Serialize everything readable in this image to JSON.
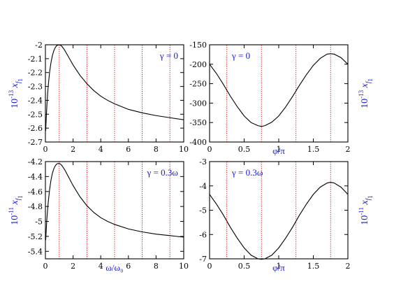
{
  "chart_data": [
    {
      "type": "line",
      "id": "top-left",
      "title": "",
      "xlabel": "ω/ω₀",
      "ylabel_mantissa": "10",
      "ylabel_exp": "-13",
      "ylabel_var": "x",
      "ylabel_sub": "f",
      "ylabel_subsub": "1",
      "ylabel_side": "left",
      "annotation": "γ = 0",
      "xlim": [
        0,
        10
      ],
      "ylim": [
        -2.7,
        -2.0
      ],
      "xticks": [
        0,
        2,
        4,
        6,
        8,
        10
      ],
      "xtick_labels": [
        "0",
        "2",
        "4",
        "6",
        "8",
        "10"
      ],
      "yticks": [
        -2.7,
        -2.6,
        -2.5,
        -2.4,
        -2.3,
        -2.2,
        -2.1,
        -2.0
      ],
      "ytick_labels": [
        "-2.7",
        "-2.6",
        "-2.5",
        "-2.4",
        "-2.3",
        "-2.2",
        "-2.1",
        "-2"
      ],
      "yticks_side": "left",
      "show_xlabel": false,
      "vlines": [
        1,
        3,
        5,
        7,
        9
      ],
      "x": [
        0.02,
        0.05,
        0.1,
        0.15,
        0.2,
        0.3,
        0.4,
        0.5,
        0.6,
        0.7,
        0.8,
        0.9,
        1.0,
        1.1,
        1.2,
        1.4,
        1.6,
        1.8,
        2.0,
        2.5,
        3.0,
        3.5,
        4.0,
        4.5,
        5.0,
        6.0,
        7.0,
        8.0,
        9.0,
        10.0
      ],
      "y": [
        -2.62,
        -2.55,
        -2.45,
        -2.37,
        -2.3,
        -2.2,
        -2.13,
        -2.08,
        -2.045,
        -2.022,
        -2.008,
        -2.002,
        -2.0,
        -2.004,
        -2.012,
        -2.04,
        -2.075,
        -2.11,
        -2.145,
        -2.22,
        -2.28,
        -2.33,
        -2.37,
        -2.4,
        -2.425,
        -2.465,
        -2.49,
        -2.51,
        -2.525,
        -2.54
      ],
      "colors": {
        "line": "#000000",
        "vline": "#d01010"
      }
    },
    {
      "type": "line",
      "id": "top-right",
      "title": "",
      "xlabel": "φ/π",
      "ylabel_mantissa": "10",
      "ylabel_exp": "-13",
      "ylabel_var": "x",
      "ylabel_sub": "f",
      "ylabel_subsub": "1",
      "ylabel_side": "right",
      "annotation": "γ = 0",
      "xlim": [
        0,
        2
      ],
      "ylim": [
        -400,
        -150
      ],
      "xticks": [
        0,
        0.5,
        1,
        1.5,
        2
      ],
      "xtick_labels": [
        "0",
        "0.5",
        "1",
        "1.5",
        "2"
      ],
      "yticks": [
        -400,
        -350,
        -300,
        -250,
        -200,
        -150
      ],
      "ytick_labels": [
        "-400",
        "-350",
        "-300",
        "-250",
        "-200",
        "-150"
      ],
      "yticks_side": "left",
      "show_xlabel": true,
      "vlines": [
        0.25,
        0.75,
        1.25,
        1.75
      ],
      "x": [
        0,
        0.1,
        0.2,
        0.3,
        0.4,
        0.5,
        0.6,
        0.7,
        0.75,
        0.8,
        0.9,
        1.0,
        1.1,
        1.2,
        1.3,
        1.4,
        1.5,
        1.6,
        1.7,
        1.75,
        1.8,
        1.9,
        2.0
      ],
      "y": [
        -200,
        -224,
        -252,
        -282,
        -309,
        -333,
        -350,
        -358,
        -360,
        -358,
        -349,
        -333,
        -310,
        -283,
        -254,
        -227,
        -203,
        -185,
        -174,
        -173,
        -174,
        -183,
        -200
      ],
      "colors": {
        "line": "#000000",
        "vline": "#d01010"
      }
    },
    {
      "type": "line",
      "id": "bottom-left",
      "title": "",
      "xlabel": "ω/ω₀",
      "ylabel_mantissa": "10",
      "ylabel_exp": "-11",
      "ylabel_var": "x",
      "ylabel_sub": "f",
      "ylabel_subsub": "1",
      "ylabel_side": "left",
      "annotation": "γ = 0.3ω",
      "xlim": [
        0,
        10
      ],
      "ylim": [
        -5.5,
        -4.2
      ],
      "xticks": [
        0,
        2,
        4,
        6,
        8,
        10
      ],
      "xtick_labels": [
        "0",
        "2",
        "4",
        "6",
        "8",
        "10"
      ],
      "yticks": [
        -5.4,
        -5.2,
        -5.0,
        -4.8,
        -4.6,
        -4.4,
        -4.2
      ],
      "ytick_labels": [
        "-5.4",
        "-5.2",
        "-5",
        "-4.8",
        "-4.6",
        "-4.4",
        "-4.2"
      ],
      "yticks_side": "left",
      "show_xlabel": true,
      "vlines": [
        1,
        3,
        5,
        7,
        9
      ],
      "x": [
        0.02,
        0.1,
        0.2,
        0.3,
        0.4,
        0.5,
        0.6,
        0.7,
        0.8,
        0.9,
        1.0,
        1.1,
        1.2,
        1.4,
        1.6,
        1.8,
        2.0,
        2.5,
        3.0,
        3.5,
        4.0,
        4.5,
        5.0,
        6.0,
        7.0,
        8.0,
        9.0,
        10.0
      ],
      "y": [
        -5.25,
        -4.98,
        -4.75,
        -4.58,
        -4.45,
        -4.36,
        -4.3,
        -4.26,
        -4.235,
        -4.225,
        -4.225,
        -4.235,
        -4.255,
        -4.31,
        -4.38,
        -4.45,
        -4.52,
        -4.67,
        -4.79,
        -4.88,
        -4.95,
        -5.0,
        -5.04,
        -5.1,
        -5.14,
        -5.17,
        -5.19,
        -5.21
      ],
      "colors": {
        "line": "#000000",
        "vline": "#d01010"
      }
    },
    {
      "type": "line",
      "id": "bottom-right",
      "title": "",
      "xlabel": "φ/π",
      "ylabel_mantissa": "10",
      "ylabel_exp": "-11",
      "ylabel_var": "x",
      "ylabel_sub": "f",
      "ylabel_subsub": "1",
      "ylabel_side": "right",
      "annotation": "γ = 0.3ω",
      "xlim": [
        0,
        2
      ],
      "ylim": [
        -7,
        -3
      ],
      "xticks": [
        0,
        0.5,
        1,
        1.5,
        2
      ],
      "xtick_labels": [
        "0",
        "0.5",
        "1",
        "1.5",
        "2"
      ],
      "yticks": [
        -7,
        -6,
        -5,
        -4,
        -3
      ],
      "ytick_labels": [
        "-7",
        "-6",
        "-5",
        "-4",
        "-3"
      ],
      "yticks_side": "left",
      "show_xlabel": true,
      "vlines": [
        0.25,
        0.75,
        1.25,
        1.75
      ],
      "x": [
        0,
        0.1,
        0.2,
        0.3,
        0.4,
        0.5,
        0.6,
        0.7,
        0.75,
        0.8,
        0.9,
        1.0,
        1.1,
        1.2,
        1.3,
        1.4,
        1.5,
        1.6,
        1.7,
        1.75,
        1.8,
        1.9,
        2.0
      ],
      "y": [
        -4.35,
        -4.75,
        -5.2,
        -5.7,
        -6.15,
        -6.55,
        -6.85,
        -7.0,
        -7.02,
        -7.0,
        -6.85,
        -6.55,
        -6.15,
        -5.7,
        -5.2,
        -4.75,
        -4.35,
        -4.05,
        -3.88,
        -3.85,
        -3.88,
        -4.05,
        -4.35
      ],
      "colors": {
        "line": "#000000",
        "vline": "#d01010"
      }
    }
  ]
}
